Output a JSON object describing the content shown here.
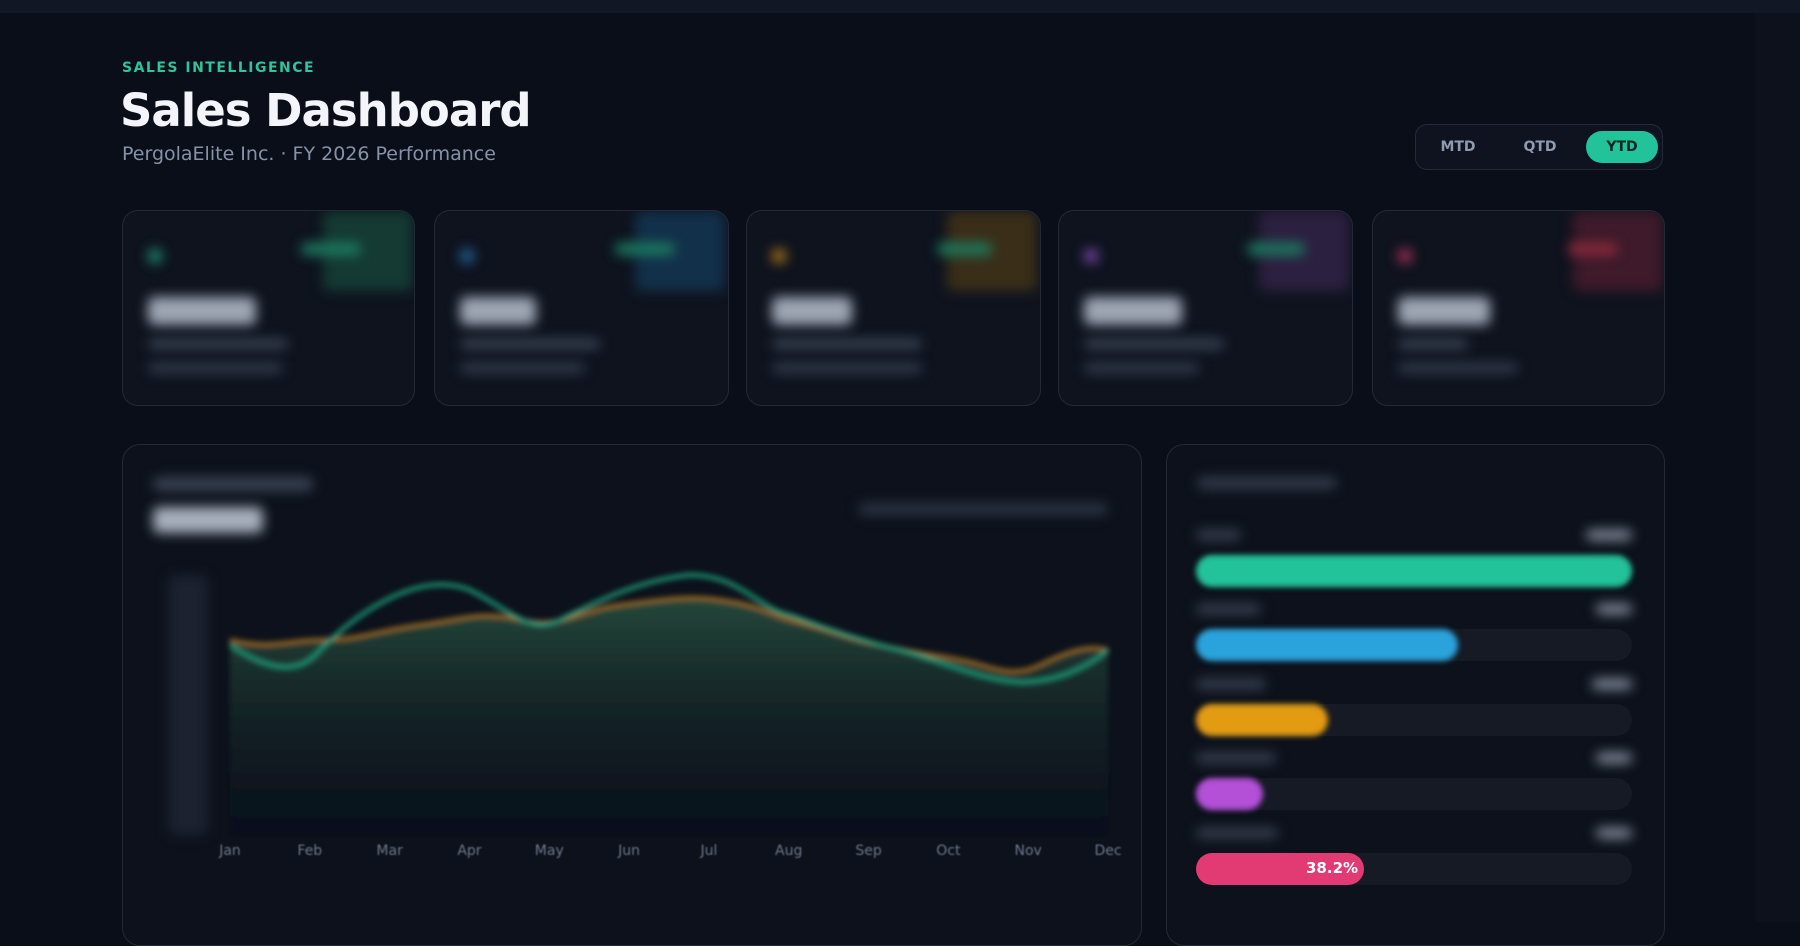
{
  "header": {
    "eyebrow": "SALES INTELLIGENCE",
    "title": "Sales Dashboard",
    "subtitle": "PergolaElite Inc. · FY 2026 Performance"
  },
  "period_toggle": {
    "options": [
      "MTD",
      "QTD",
      "YTD"
    ],
    "active": 2
  },
  "trend_chart": {
    "months": [
      "Jan",
      "Feb",
      "Mar",
      "Apr",
      "May",
      "Jun",
      "Jul",
      "Aug",
      "Sep",
      "Oct",
      "Nov",
      "Dec"
    ]
  },
  "funnel": {
    "last_stage_label": "38.2%"
  }
}
